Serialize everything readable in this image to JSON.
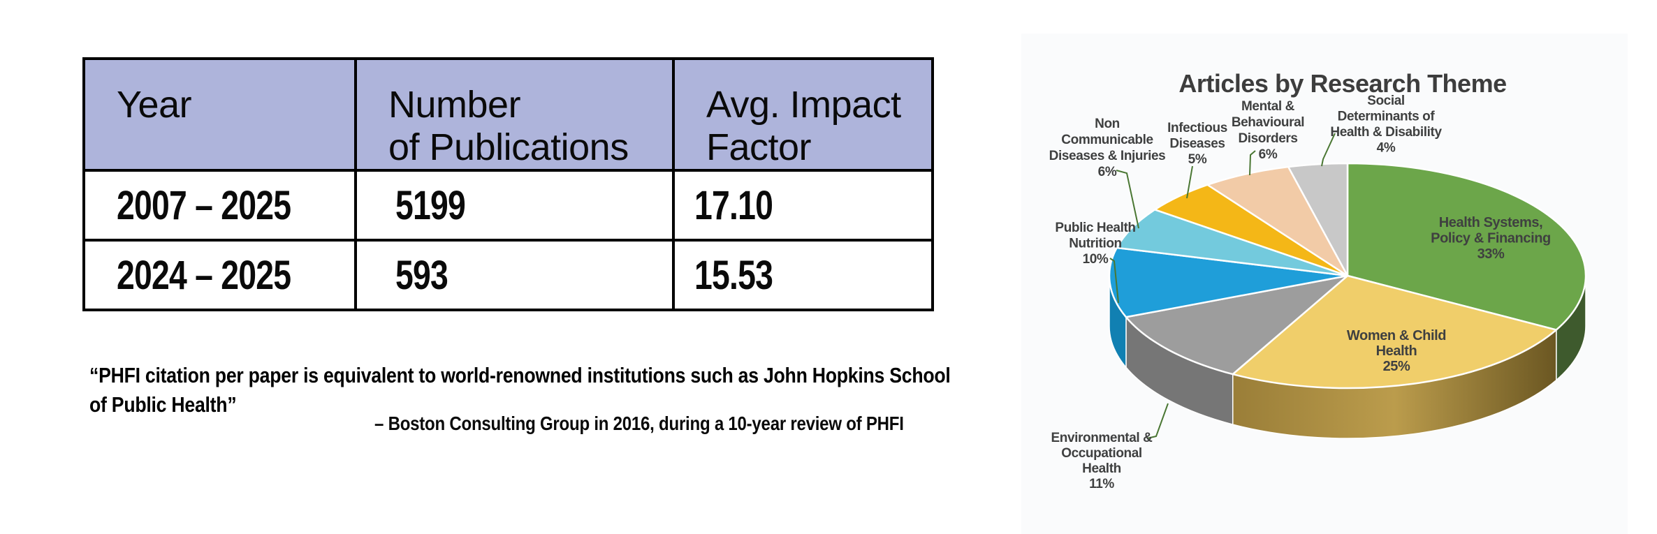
{
  "document": {
    "table": {
      "headers": [
        "Year",
        "Number\nof Publications",
        "Avg. Impact\nFactor"
      ],
      "rows": [
        {
          "year": "2007 – 2025",
          "publications": "5199",
          "impact_factor": "17.10"
        },
        {
          "year": "2024 – 2025",
          "publications": "593",
          "impact_factor": "15.53"
        }
      ]
    },
    "quote": {
      "text": "“PHFI citation per paper is equivalent to world-renowned institutions such as John Hopkins School\nof Public Health”",
      "attribution": "– Boston Consulting Group in 2016, during a 10-year review of PHFI"
    }
  },
  "chart_data": {
    "type": "pie",
    "style": "3d",
    "title": "Articles by Research Theme",
    "legend_position": "none",
    "labels_on_chart": true,
    "slices": [
      {
        "id": "health-systems",
        "label": "Health Systems,\nPolicy & Financing",
        "value": 33,
        "unit": "%",
        "color": "#6CA64A",
        "dark": "#3E5A2D",
        "label_placement": "inside"
      },
      {
        "id": "women-child",
        "label": "Women & Child\nHealth",
        "value": 25,
        "unit": "%",
        "color": "#F0CE6A",
        "dark": "#9A7E38",
        "label_placement": "inside"
      },
      {
        "id": "environmental",
        "label": "Environmental &\nOccupational\nHealth",
        "value": 11,
        "unit": "%",
        "color": "#9D9D9D",
        "dark": "#767676",
        "label_placement": "outside"
      },
      {
        "id": "public-health-nutrition",
        "label": "Public Health\nNutrition",
        "value": 10,
        "unit": "%",
        "color": "#1F9ED9",
        "dark": "#1180B2",
        "label_placement": "outside"
      },
      {
        "id": "non-communicable",
        "label": "Non\nCommunicable\nDiseases & Injuries",
        "value": 6,
        "unit": "%",
        "color": "#73CADD",
        "dark": "#4FA8BC",
        "label_placement": "outside"
      },
      {
        "id": "infectious",
        "label": "Infectious\nDiseases",
        "value": 5,
        "unit": "%",
        "color": "#F4B717",
        "dark": "#C08F0E",
        "label_placement": "outside"
      },
      {
        "id": "mental",
        "label": "Mental &\nBehavioural\nDisorders",
        "value": 6,
        "unit": "%",
        "color": "#F2CBA7",
        "dark": "#C9A080",
        "label_placement": "outside"
      },
      {
        "id": "social-determinants",
        "label": "Social\nDeterminants of\nHealth & Disability",
        "value": 4,
        "unit": "%",
        "color": "#C8C8C8",
        "dark": "#A5A5A5",
        "label_placement": "outside"
      }
    ],
    "colors": {
      "title_text": "#3D3D3D",
      "label_text": "#3F4040",
      "leader_line": "#4A7733",
      "slice_separator": "#FFFFFF",
      "panel_background": "#FAFBFC",
      "table_header_background": "#AEB4DB"
    }
  }
}
